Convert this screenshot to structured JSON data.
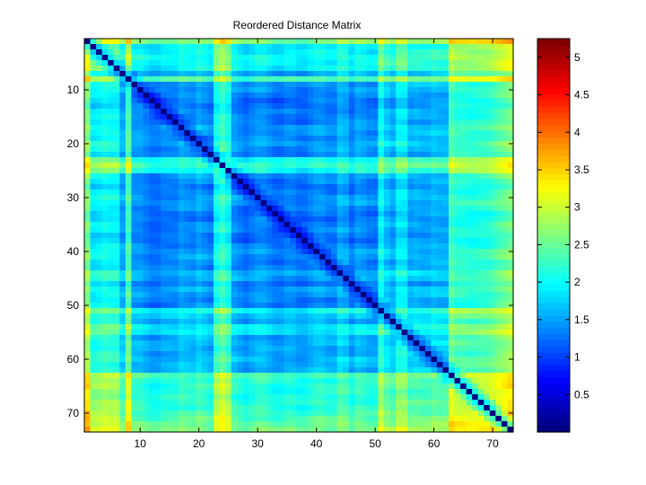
{
  "chart_data": {
    "type": "heatmap",
    "title": "Reordered Distance Matrix",
    "xlabel": "",
    "ylabel": "",
    "n": 73,
    "x_ticks": [
      10,
      20,
      30,
      40,
      50,
      60,
      70
    ],
    "y_ticks": [
      10,
      20,
      30,
      40,
      50,
      60,
      70
    ],
    "colorbar": {
      "min": 0,
      "max": 5.25,
      "ticks": [
        0.5,
        1,
        1.5,
        2,
        2.5,
        3,
        3.5,
        4,
        4.5,
        5
      ],
      "tick_labels": [
        "0.5",
        "1",
        "1.5",
        "2",
        "2.5",
        "3",
        "3.5",
        "4",
        "4.5",
        "5"
      ],
      "colormap": "jet"
    },
    "diagonal_value": 0,
    "baseline_value": 1.3,
    "row_offsets": [
      2.2,
      0.6,
      0.6,
      0.7,
      0.7,
      1.0,
      0.2,
      1.0,
      0.0,
      0.0,
      -0.1,
      -0.2,
      -0.2,
      -0.1,
      0.0,
      -0.1,
      0.1,
      0.1,
      0.0,
      0.2,
      0.1,
      0.0,
      0.7,
      0.9,
      0.7,
      0.1,
      0.0,
      -0.1,
      0.0,
      0.1,
      0.1,
      0.0,
      -0.1,
      -0.1,
      0.0,
      0.0,
      -0.1,
      -0.1,
      0.0,
      0.1,
      0.1,
      0.0,
      0.0,
      0.0,
      0.2,
      -0.1,
      0.2,
      0.1,
      0.0,
      0.0,
      0.6,
      0.5,
      0.2,
      0.5,
      0.5,
      0.2,
      0.3,
      0.2,
      0.2,
      0.3,
      0.2,
      0.2,
      1.0,
      0.8,
      0.8,
      0.7,
      0.7,
      0.7,
      0.6,
      0.7,
      0.8,
      0.9,
      1.0
    ],
    "col_offsets": [
      0.4,
      0.5,
      0.6,
      0.7,
      0.6,
      0.3,
      0.2,
      1.0,
      0.2,
      0.2,
      0.1,
      0.0,
      0.0,
      0.1,
      0.0,
      0.1,
      0.2,
      0.1,
      0.1,
      0.2,
      0.1,
      0.0,
      0.7,
      0.9,
      0.7,
      0.1,
      0.0,
      -0.1,
      0.0,
      0.1,
      0.1,
      0.0,
      -0.1,
      -0.1,
      0.0,
      0.0,
      -0.1,
      -0.1,
      0.0,
      0.1,
      0.1,
      0.0,
      0.0,
      0.5,
      0.2,
      0.0,
      0.1,
      0.1,
      0.0,
      0.0,
      0.7,
      0.2,
      0.2,
      0.6,
      0.6,
      0.2,
      0.2,
      0.2,
      0.2,
      0.3,
      0.3,
      0.3,
      1.0,
      0.9,
      0.9,
      0.9,
      0.9,
      1.0,
      1.1,
      1.2,
      1.3,
      1.4,
      1.5
    ]
  }
}
